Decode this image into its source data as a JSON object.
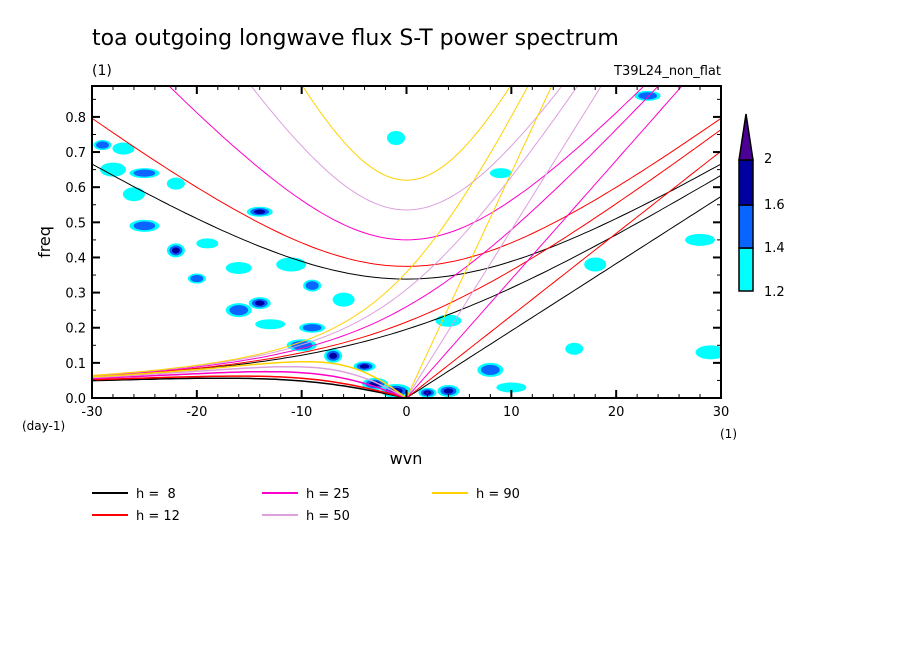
{
  "chart_data": {
    "type": "heatmap",
    "title": "toa outgoing longwave flux S-T power spectrum",
    "subtitle_left": "(1)",
    "subtitle_right": "T39L24_non_flat",
    "xlabel": "wvn",
    "ylabel": "freq",
    "x_unit": "(1)",
    "y_unit": "(day-1)",
    "xlim": [
      -30,
      30
    ],
    "ylim": [
      0,
      0.888
    ],
    "x_ticks": [
      -30,
      -20,
      -10,
      0,
      10,
      20,
      30
    ],
    "x_tick_labels": [
      "-30",
      "-20",
      "-10",
      "0",
      "10",
      "20",
      "30"
    ],
    "y_ticks": [
      0,
      0.1,
      0.2,
      0.3,
      0.4,
      0.5,
      0.6,
      0.7,
      0.8
    ],
    "y_tick_labels": [
      "0.0",
      "0.1",
      "0.2",
      "0.3",
      "0.4",
      "0.5",
      "0.6",
      "0.7",
      "0.8"
    ],
    "colorbar": {
      "levels": [
        1.2,
        1.4,
        1.6,
        2
      ],
      "level_labels": [
        "1.2",
        "1.4",
        "1.6",
        "2"
      ],
      "colors": [
        "#00ffff",
        "#0a64ff",
        "#0000a0",
        "#4b0096"
      ]
    },
    "contour_regions": [
      {
        "x": -29,
        "y": 0.72,
        "level": 2
      },
      {
        "x": -27,
        "y": 0.71,
        "level": 1
      },
      {
        "x": -28,
        "y": 0.65,
        "level": 1
      },
      {
        "x": -25,
        "y": 0.64,
        "level": 2
      },
      {
        "x": -22,
        "y": 0.61,
        "level": 1
      },
      {
        "x": -26,
        "y": 0.58,
        "level": 1
      },
      {
        "x": -14,
        "y": 0.53,
        "level": 3
      },
      {
        "x": -25,
        "y": 0.49,
        "level": 2
      },
      {
        "x": -22,
        "y": 0.42,
        "level": 3
      },
      {
        "x": -19,
        "y": 0.44,
        "level": 1
      },
      {
        "x": -16,
        "y": 0.37,
        "level": 1
      },
      {
        "x": -11,
        "y": 0.38,
        "level": 1
      },
      {
        "x": -20,
        "y": 0.34,
        "level": 2
      },
      {
        "x": -14,
        "y": 0.27,
        "level": 3
      },
      {
        "x": -16,
        "y": 0.25,
        "level": 2
      },
      {
        "x": -13,
        "y": 0.21,
        "level": 1
      },
      {
        "x": -9,
        "y": 0.32,
        "level": 2
      },
      {
        "x": -6,
        "y": 0.28,
        "level": 1
      },
      {
        "x": -9,
        "y": 0.2,
        "level": 2
      },
      {
        "x": -10,
        "y": 0.15,
        "level": 2
      },
      {
        "x": -7,
        "y": 0.12,
        "level": 3
      },
      {
        "x": -4,
        "y": 0.09,
        "level": 3
      },
      {
        "x": -3,
        "y": 0.04,
        "level": 3
      },
      {
        "x": -1,
        "y": 0.02,
        "level": 4
      },
      {
        "x": 2,
        "y": 0.015,
        "level": 4
      },
      {
        "x": 4,
        "y": 0.02,
        "level": 3
      },
      {
        "x": 8,
        "y": 0.08,
        "level": 2
      },
      {
        "x": 10,
        "y": 0.03,
        "level": 1
      },
      {
        "x": 16,
        "y": 0.14,
        "level": 1
      },
      {
        "x": 18,
        "y": 0.38,
        "level": 1
      },
      {
        "x": 23,
        "y": 0.86,
        "level": 2
      },
      {
        "x": 28,
        "y": 0.45,
        "level": 1
      },
      {
        "x": -1,
        "y": 0.74,
        "level": 1
      },
      {
        "x": 9,
        "y": 0.64,
        "level": 1
      },
      {
        "x": 4,
        "y": 0.22,
        "level": 1
      },
      {
        "x": 29,
        "y": 0.13,
        "level": 1
      }
    ],
    "series": [
      {
        "name": "h =  8",
        "h": 8,
        "color": "#000000"
      },
      {
        "name": "h = 12",
        "h": 12,
        "color": "#ff0000"
      },
      {
        "name": "h = 25",
        "h": 25,
        "color": "#ff00c8"
      },
      {
        "name": "h = 50",
        "h": 50,
        "color": "#dca0dc"
      },
      {
        "name": "h = 90",
        "h": 90,
        "color": "#ffd200"
      }
    ],
    "legend_position": "bottom"
  }
}
